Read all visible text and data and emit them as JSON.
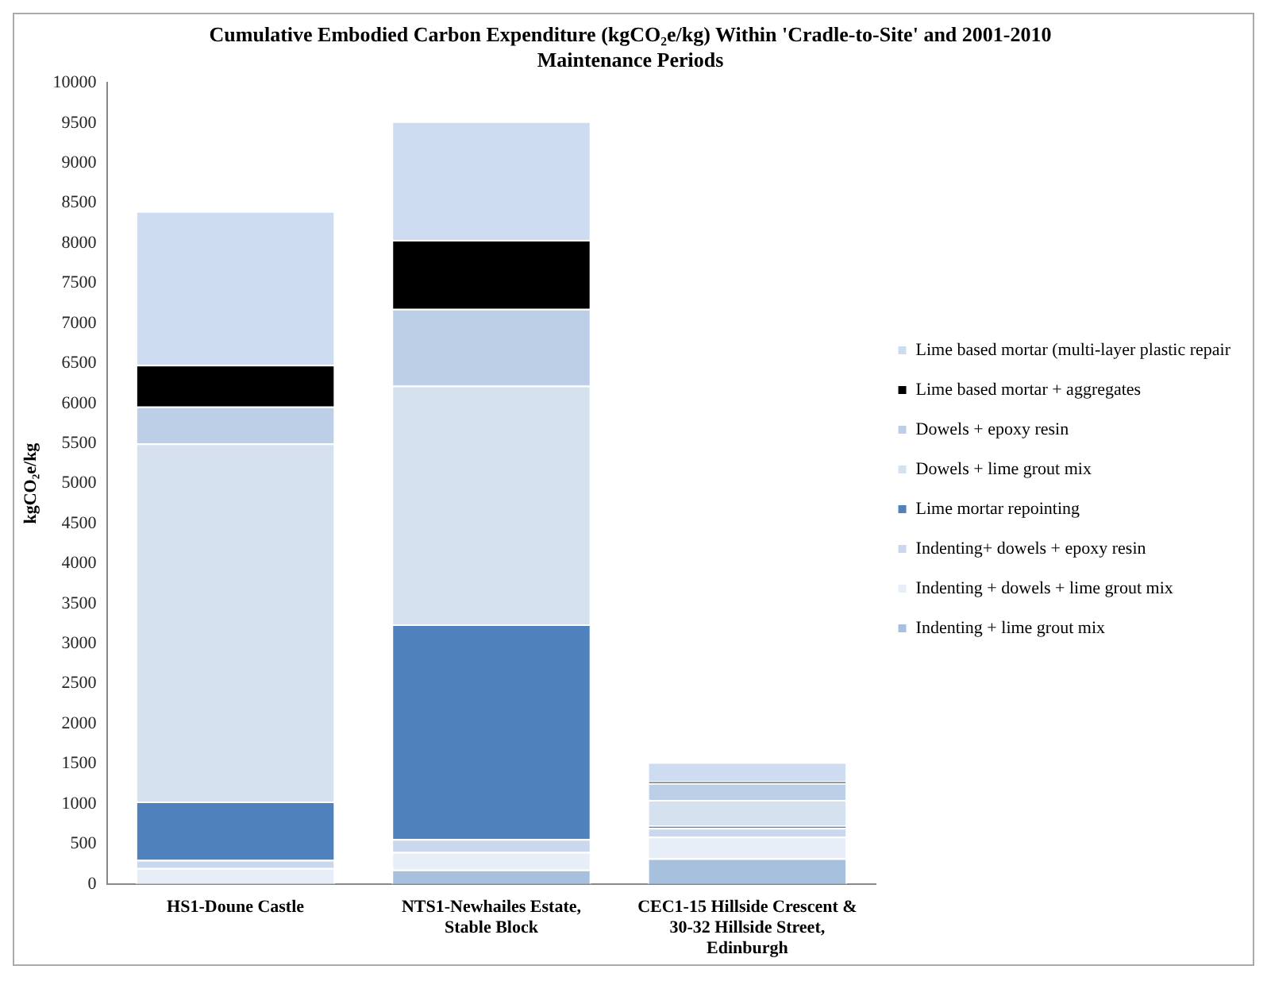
{
  "chart_data": {
    "type": "bar",
    "title": "Cumulative Embodied Carbon Expenditure (kgCO₂e/kg) Within 'Cradle-to-Site' and 2001-2010 Maintenance Periods",
    "ylabel": "kgCO₂e/kg",
    "categories": [
      "HS1-Doune Castle",
      "NTS1-Newhailes Estate, Stable Block",
      "CEC1-15 Hillside Crescent & 30-32 Hillside Street, Edinburgh"
    ],
    "stacked": true,
    "ylim": [
      0,
      10000
    ],
    "yticks": [
      0,
      500,
      1000,
      1500,
      2000,
      2500,
      3000,
      3500,
      4000,
      4500,
      5000,
      5500,
      6000,
      6500,
      7000,
      7500,
      8000,
      8500,
      9000,
      9500,
      10000
    ],
    "grid": false,
    "legend": "right",
    "series": [
      {
        "name": "Indenting + lime grout mix",
        "color": "#a7c0de",
        "values": [
          0,
          180,
          320
        ]
      },
      {
        "name": "Indenting + dowels + lime grout mix",
        "color": "#e8eef7",
        "values": [
          200,
          220,
          270
        ]
      },
      {
        "name": "Indenting+ dowels + epoxy resin",
        "color": "#c9d8ec",
        "values": [
          100,
          160,
          110
        ]
      },
      {
        "name": "Lime mortar repointing",
        "color": "#4f81bd",
        "values": [
          730,
          2680,
          30
        ]
      },
      {
        "name": "Dowels + lime grout mix",
        "color": "#d6e1ef",
        "values": [
          4470,
          2980,
          320
        ]
      },
      {
        "name": "Dowels + epoxy resin",
        "color": "#bccfe6",
        "values": [
          460,
          960,
          210
        ]
      },
      {
        "name": "Lime based mortar + aggregates",
        "color": "#000000",
        "values": [
          520,
          860,
          20
        ]
      },
      {
        "name": "Lime based mortar (multi-layer plastic repair",
        "color": "#cddcf0",
        "values": [
          1920,
          1480,
          240
        ]
      }
    ]
  }
}
